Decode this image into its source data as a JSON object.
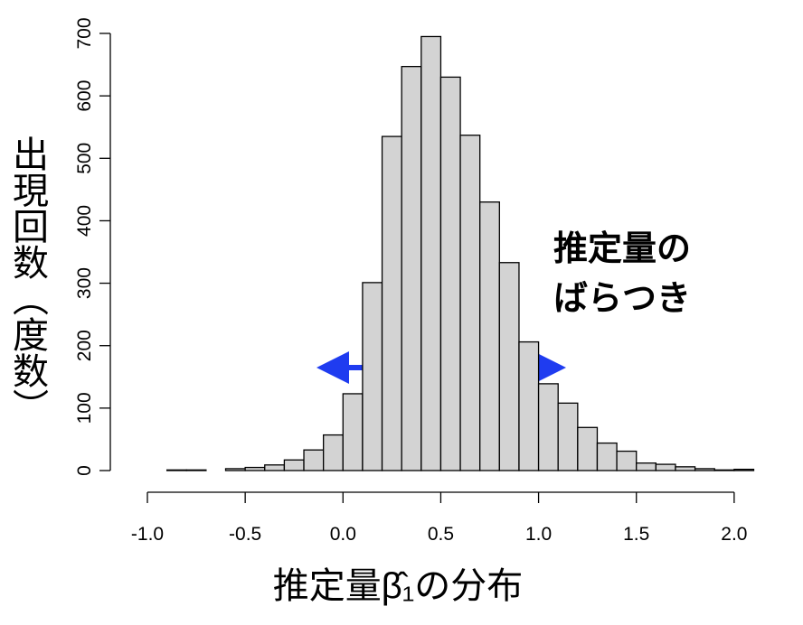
{
  "chart_data": {
    "type": "histogram",
    "bins": [
      -0.9,
      -0.8,
      -0.7,
      -0.6,
      -0.5,
      -0.4,
      -0.3,
      -0.2,
      -0.1,
      0.0,
      0.1,
      0.2,
      0.3,
      0.4,
      0.5,
      0.6,
      0.7,
      0.8,
      0.9,
      1.0,
      1.1,
      1.2,
      1.3,
      1.4,
      1.5,
      1.6,
      1.7,
      1.8,
      1.9,
      2.0,
      2.1
    ],
    "values": [
      1,
      1,
      0,
      3,
      5,
      9,
      17,
      33,
      57,
      123,
      301,
      535,
      647,
      695,
      630,
      537,
      430,
      333,
      206,
      139,
      108,
      69,
      44,
      31,
      12,
      10,
      6,
      3,
      1,
      2
    ],
    "color": "#d3d3d3",
    "x_label": "推定量β̂₁の分布",
    "y_label": "出現回数（度数）",
    "annotation": [
      "推定量の",
      "ばらつき"
    ],
    "xlim": [
      -1.0,
      2.1
    ],
    "xticks": [
      {
        "value": -1.0,
        "label": "-1.0"
      },
      0.5,
      {
        "value": 0.0,
        "label": "0.0"
      },
      {
        "value": -0.5,
        "label": "-0.5"
      },
      {
        "value": 1.0,
        "label": "1.0"
      },
      1.5,
      {
        "value": 2.0,
        "label": "2.0"
      }
    ],
    "ylim": [
      0,
      700
    ],
    "yticks": [
      0,
      100,
      200,
      300,
      400,
      500,
      600,
      700
    ]
  }
}
